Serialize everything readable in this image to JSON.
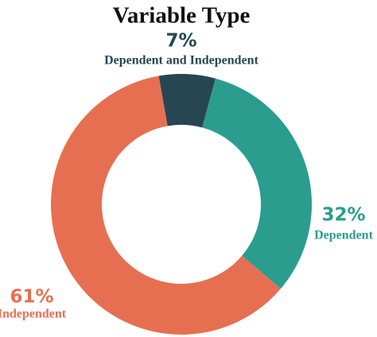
{
  "chart_data": {
    "type": "donut",
    "title": "Variable Type",
    "categories": [
      "Dependent and Independent",
      "Dependent",
      "Independent"
    ],
    "values": [
      7,
      32,
      61
    ],
    "value_labels": [
      "7%",
      "32%",
      "61%"
    ],
    "colors": [
      "#264653",
      "#2a9d8f",
      "#e76f51"
    ]
  }
}
